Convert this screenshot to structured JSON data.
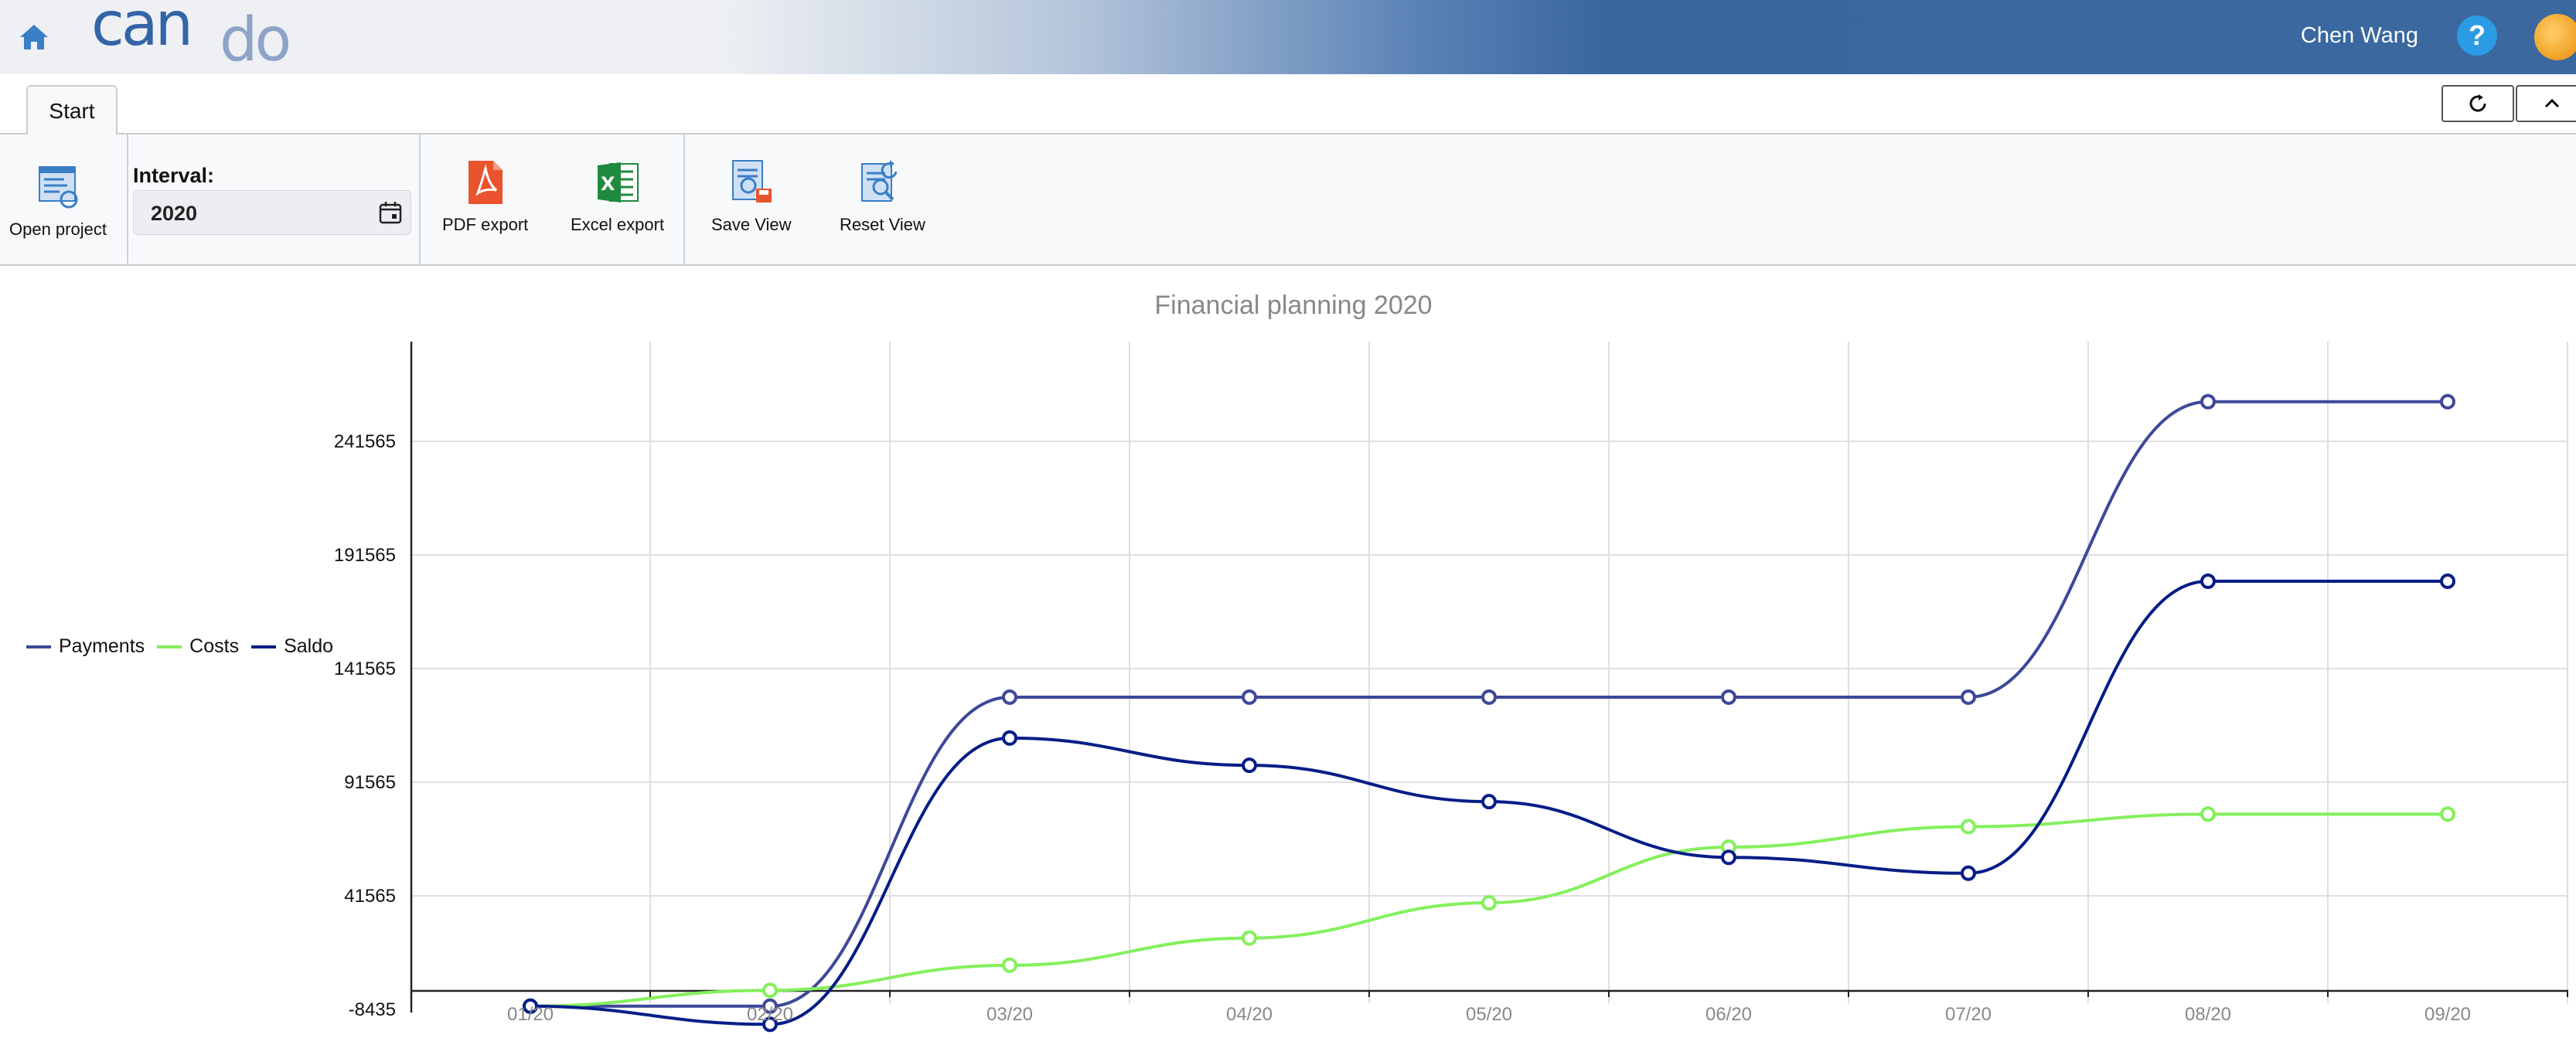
{
  "header": {
    "user_name": "Chen Wang",
    "help_label": "?",
    "colors": {
      "bar_dark": "#3a689f",
      "bar_light": "#eef0f3",
      "help": "#2b9be6"
    }
  },
  "tabs": [
    {
      "label": "Start"
    }
  ],
  "ribbon": {
    "open_project_label": "Open project",
    "interval_label": "Interval:",
    "interval_value": "2020",
    "pdf_export_label": "PDF export",
    "excel_export_label": "Excel export",
    "save_view_label": "Save View",
    "reset_view_label": "Reset View"
  },
  "chart_data": {
    "type": "line",
    "title": "Financial planning 2020",
    "xlabel": "",
    "ylabel": "",
    "categories": [
      "01/20",
      "02/20",
      "03/20",
      "04/20",
      "05/20",
      "06/20",
      "07/20",
      "08/20",
      "09/20"
    ],
    "y_ticks": [
      -8435,
      41565,
      91565,
      141565,
      191565,
      241565
    ],
    "ylim": [
      -8435,
      285000
    ],
    "grid": true,
    "legend_position": "left",
    "series": [
      {
        "name": "Payments",
        "color": "#3d4899",
        "values": [
          -7000,
          -7000,
          129000,
          129000,
          129000,
          129000,
          129000,
          259000,
          259000
        ]
      },
      {
        "name": "Costs",
        "color": "#83f05c",
        "values": [
          -7000,
          0,
          11000,
          23000,
          38500,
          63000,
          72000,
          77500,
          77500
        ]
      },
      {
        "name": "Saldo",
        "color": "#061d87",
        "values": [
          -7000,
          -15000,
          111000,
          99000,
          83000,
          58500,
          51500,
          180000,
          180000
        ]
      }
    ]
  }
}
